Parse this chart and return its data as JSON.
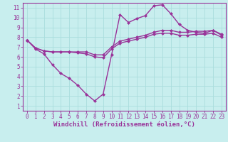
{
  "xlabel": "Windchill (Refroidissement éolien,°C)",
  "xlim": [
    -0.5,
    23.5
  ],
  "ylim": [
    0.5,
    11.5
  ],
  "xticks": [
    0,
    1,
    2,
    3,
    4,
    5,
    6,
    7,
    8,
    9,
    10,
    11,
    12,
    13,
    14,
    15,
    16,
    17,
    18,
    19,
    20,
    21,
    22,
    23
  ],
  "yticks": [
    1,
    2,
    3,
    4,
    5,
    6,
    7,
    8,
    9,
    10,
    11
  ],
  "background_color": "#c8eeee",
  "grid_color": "#aadddd",
  "line_color": "#993399",
  "spine_color": "#993399",
  "curve1_x": [
    0,
    1,
    2,
    3,
    4,
    5,
    6,
    7,
    8,
    9,
    10,
    11,
    12,
    13,
    14,
    15,
    16,
    17,
    18,
    19,
    20,
    21,
    22,
    23
  ],
  "curve1_y": [
    7.7,
    6.8,
    6.3,
    5.2,
    4.3,
    3.8,
    3.1,
    2.2,
    1.5,
    2.2,
    6.2,
    10.3,
    9.5,
    9.9,
    10.2,
    11.2,
    11.3,
    10.4,
    9.3,
    8.7,
    8.5,
    8.4,
    8.7,
    8.2
  ],
  "curve2_x": [
    0,
    1,
    2,
    3,
    4,
    5,
    6,
    7,
    8,
    9,
    10,
    11,
    12,
    13,
    14,
    15,
    16,
    17,
    18,
    19,
    20,
    21,
    22,
    23
  ],
  "curve2_y": [
    7.7,
    6.9,
    6.6,
    6.5,
    6.5,
    6.5,
    6.5,
    6.5,
    6.2,
    6.2,
    7.0,
    7.6,
    7.8,
    8.0,
    8.2,
    8.5,
    8.7,
    8.7,
    8.5,
    8.5,
    8.6,
    8.6,
    8.7,
    8.3
  ],
  "curve3_x": [
    0,
    1,
    2,
    3,
    4,
    5,
    6,
    7,
    8,
    9,
    10,
    11,
    12,
    13,
    14,
    15,
    16,
    17,
    18,
    19,
    20,
    21,
    22,
    23
  ],
  "curve3_y": [
    7.7,
    6.9,
    6.6,
    6.5,
    6.5,
    6.5,
    6.4,
    6.3,
    6.0,
    5.9,
    6.8,
    7.4,
    7.6,
    7.8,
    8.0,
    8.3,
    8.4,
    8.4,
    8.2,
    8.2,
    8.3,
    8.3,
    8.4,
    8.0
  ],
  "marker": "D",
  "markersize": 2.5,
  "linewidth": 1.0,
  "tick_fontsize": 5.5,
  "label_fontsize": 6.5
}
